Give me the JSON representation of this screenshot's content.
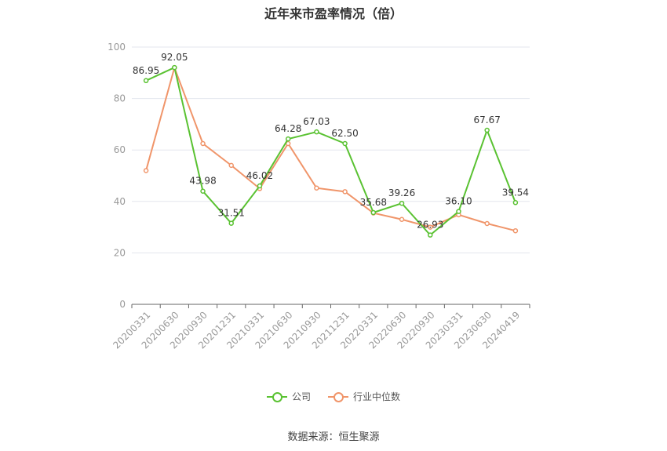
{
  "chart_data": {
    "type": "line",
    "title": "近年来市盈率情况（倍）",
    "categories": [
      "20200331",
      "20200630",
      "20200930",
      "20201231",
      "20210331",
      "20210630",
      "20210930",
      "20211231",
      "20220331",
      "20220630",
      "20220930",
      "20230331",
      "20230630",
      "20240419"
    ],
    "series": [
      {
        "name": "公司",
        "color": "#5ac232",
        "values": [
          86.95,
          92.05,
          43.98,
          31.51,
          46.02,
          64.28,
          67.03,
          62.5,
          35.68,
          39.26,
          26.93,
          36.1,
          67.67,
          39.54
        ],
        "labels": [
          "86.95",
          "92.05",
          "43.98",
          "31.51",
          "46.02",
          "64.28",
          "67.03",
          "62.50",
          "35.68",
          "39.26",
          "26.93",
          "36.10",
          "67.67",
          "39.54"
        ]
      },
      {
        "name": "行业中位数",
        "color": "#f0956a",
        "values": [
          52,
          92,
          62.5,
          54,
          45,
          62.5,
          45.2,
          43.8,
          35.5,
          33,
          30,
          34.8,
          31.4,
          28.6
        ]
      }
    ],
    "ylim": [
      0,
      100
    ],
    "yticks": [
      "0",
      "20",
      "40",
      "60",
      "80",
      "100"
    ],
    "grid": true,
    "legend_position": "bottom"
  },
  "source": "数据来源：恒生聚源"
}
